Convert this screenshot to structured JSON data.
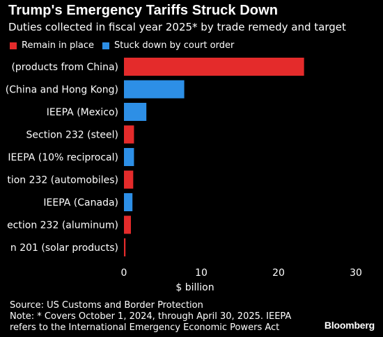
{
  "header": {
    "title": "Trump's Emergency Tariffs Struck Down",
    "subtitle": "Duties collected in fiscal year 2025* by trade remedy and target"
  },
  "legend": [
    {
      "label": "Remain in place",
      "color": "#e42b2b"
    },
    {
      "label": "Stuck down by court order",
      "color": "#2d8fe6"
    }
  ],
  "footer": {
    "source": "Source: US Customs and Border Protection",
    "note_line1": "Note: * Covers October 1, 2024, through April 30, 2025. IEEPA",
    "note_line2": "refers to the International Emergency Economic Powers Act",
    "brand": "Bloomberg"
  },
  "chart_data": {
    "type": "bar",
    "orientation": "horizontal",
    "xlabel": "$ billion",
    "xlim": [
      0,
      30
    ],
    "xticks": [
      0,
      10,
      20,
      30
    ],
    "grid": false,
    "legend_position": "top-left",
    "categories": [
      "(products from China)",
      "(China and Hong Kong)",
      "IEEPA (Mexico)",
      "Section 232 (steel)",
      "IEEPA (10% reciprocal)",
      "tion 232 (automobiles)",
      "IEEPA (Canada)",
      "ection 232 (aluminum)",
      "n 201 (solar products)"
    ],
    "values": [
      23.3,
      7.8,
      2.9,
      1.3,
      1.3,
      1.2,
      1.1,
      0.9,
      0.2
    ],
    "status": [
      "Remain in place",
      "Stuck down by court order",
      "Stuck down by court order",
      "Remain in place",
      "Stuck down by court order",
      "Remain in place",
      "Stuck down by court order",
      "Remain in place",
      "Remain in place"
    ]
  }
}
